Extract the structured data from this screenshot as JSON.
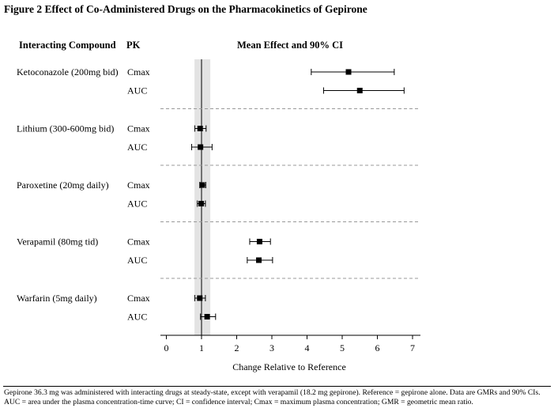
{
  "figure": {
    "title": "Figure 2 Effect of Co-Administered Drugs on the Pharmacokinetics of Gepirone",
    "headers": {
      "compound": "Interacting Compound",
      "pk": "PK",
      "effect": "Mean Effect and 90% CI"
    },
    "footnote": "Gepirone 36.3 mg was administered with interacting drugs at steady-state, except with verapamil (18.2 mg gepirone). Reference = gepirone alone. Data are GMRs and 90% CIs. AUC = area under the plasma concentration-time curve; CI = confidence interval; Cmax = maximum plasma concentration; GMR = geometric mean ratio."
  },
  "chart_data": {
    "type": "forest",
    "xlabel": "Change Relative to Reference",
    "xlim": [
      -0.2,
      7.2
    ],
    "xticks": [
      0,
      1,
      2,
      3,
      4,
      5,
      6,
      7
    ],
    "reference_line": 1.0,
    "reference_band": [
      0.8,
      1.25
    ],
    "band_color": "#e3e3e3",
    "separator_style": "dashed",
    "groups": [
      {
        "compound": "Ketoconazole (200mg bid)",
        "rows": [
          {
            "pk": "Cmax",
            "estimate": 5.18,
            "lower": 4.12,
            "upper": 6.48
          },
          {
            "pk": "AUC",
            "estimate": 5.5,
            "lower": 4.47,
            "upper": 6.76
          }
        ]
      },
      {
        "compound": "Lithium (300-600mg bid)",
        "rows": [
          {
            "pk": "Cmax",
            "estimate": 0.96,
            "lower": 0.81,
            "upper": 1.13
          },
          {
            "pk": "AUC",
            "estimate": 0.97,
            "lower": 0.72,
            "upper": 1.3
          }
        ]
      },
      {
        "compound": "Paroxetine (20mg daily)",
        "rows": [
          {
            "pk": "Cmax",
            "estimate": 1.02,
            "lower": 0.95,
            "upper": 1.12
          },
          {
            "pk": "AUC",
            "estimate": 0.99,
            "lower": 0.88,
            "upper": 1.11
          }
        ]
      },
      {
        "compound": "Verapamil (80mg tid)",
        "rows": [
          {
            "pk": "Cmax",
            "estimate": 2.65,
            "lower": 2.37,
            "upper": 2.96
          },
          {
            "pk": "AUC",
            "estimate": 2.63,
            "lower": 2.3,
            "upper": 3.02
          }
        ]
      },
      {
        "compound": "Warfarin (5mg daily)",
        "rows": [
          {
            "pk": "Cmax",
            "estimate": 0.95,
            "lower": 0.81,
            "upper": 1.11
          },
          {
            "pk": "AUC",
            "estimate": 1.16,
            "lower": 0.97,
            "upper": 1.4
          }
        ]
      }
    ]
  }
}
